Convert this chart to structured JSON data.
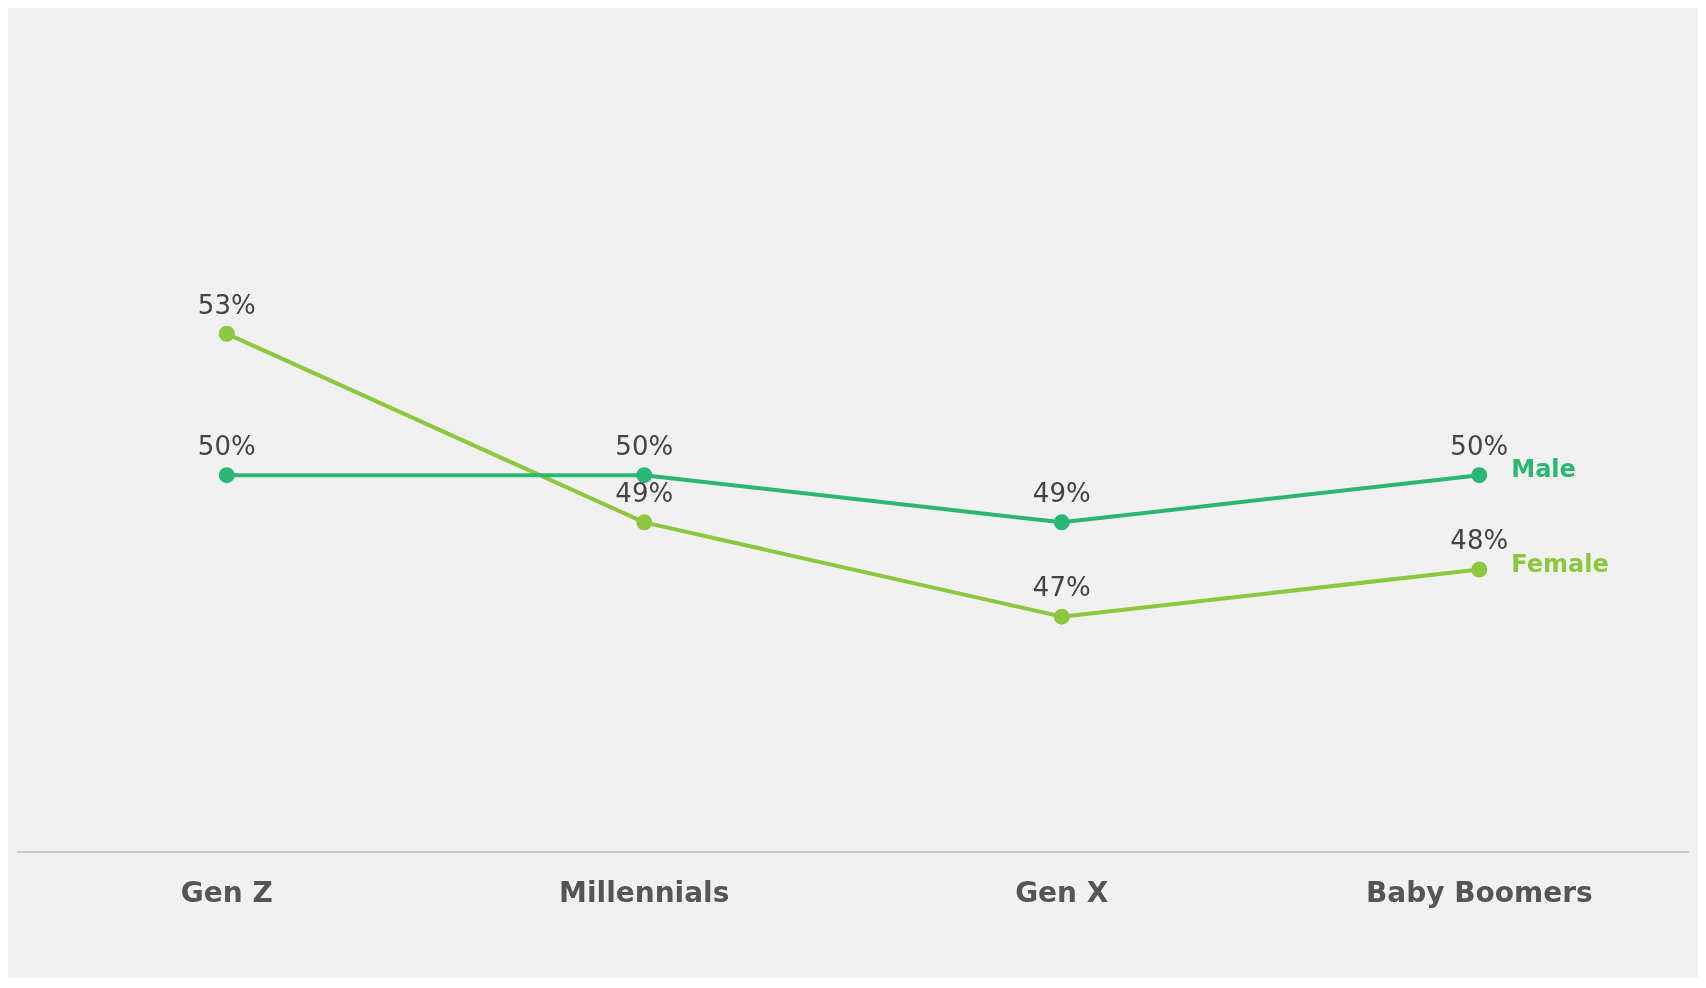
{
  "chart_data": {
    "type": "line",
    "categories": [
      "Gen Z",
      "Millennials",
      "Gen X",
      "Baby Boomers"
    ],
    "series": [
      {
        "name": "Male",
        "color": "#2bb673",
        "values": [
          50,
          50,
          49,
          50
        ],
        "value_labels": [
          "50%",
          "50%",
          "49%",
          "50%"
        ]
      },
      {
        "name": "Female",
        "color": "#8dc63f",
        "values": [
          53,
          49,
          47,
          48
        ],
        "value_labels": [
          "53%",
          "49%",
          "47%",
          "48%"
        ]
      }
    ],
    "grid": false,
    "legend": false,
    "marker": "circle",
    "line_style": "solid",
    "tick_labels": "x"
  }
}
